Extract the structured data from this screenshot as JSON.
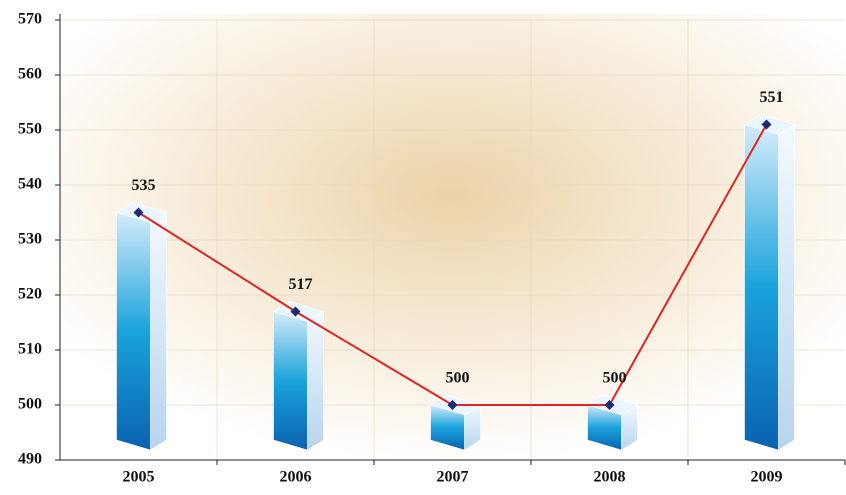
{
  "chart_data": {
    "type": "bar",
    "categories": [
      "2005",
      "2006",
      "2007",
      "2008",
      "2009"
    ],
    "values": [
      535,
      517,
      500,
      500,
      551
    ],
    "color": "#1a9fd8",
    "line_color": "#e02424",
    "marker_color": "#1c2a7a",
    "ylim": [
      490,
      570
    ],
    "yticks": [
      490,
      500,
      510,
      520,
      530,
      540,
      550,
      560,
      570
    ],
    "grid": true
  }
}
